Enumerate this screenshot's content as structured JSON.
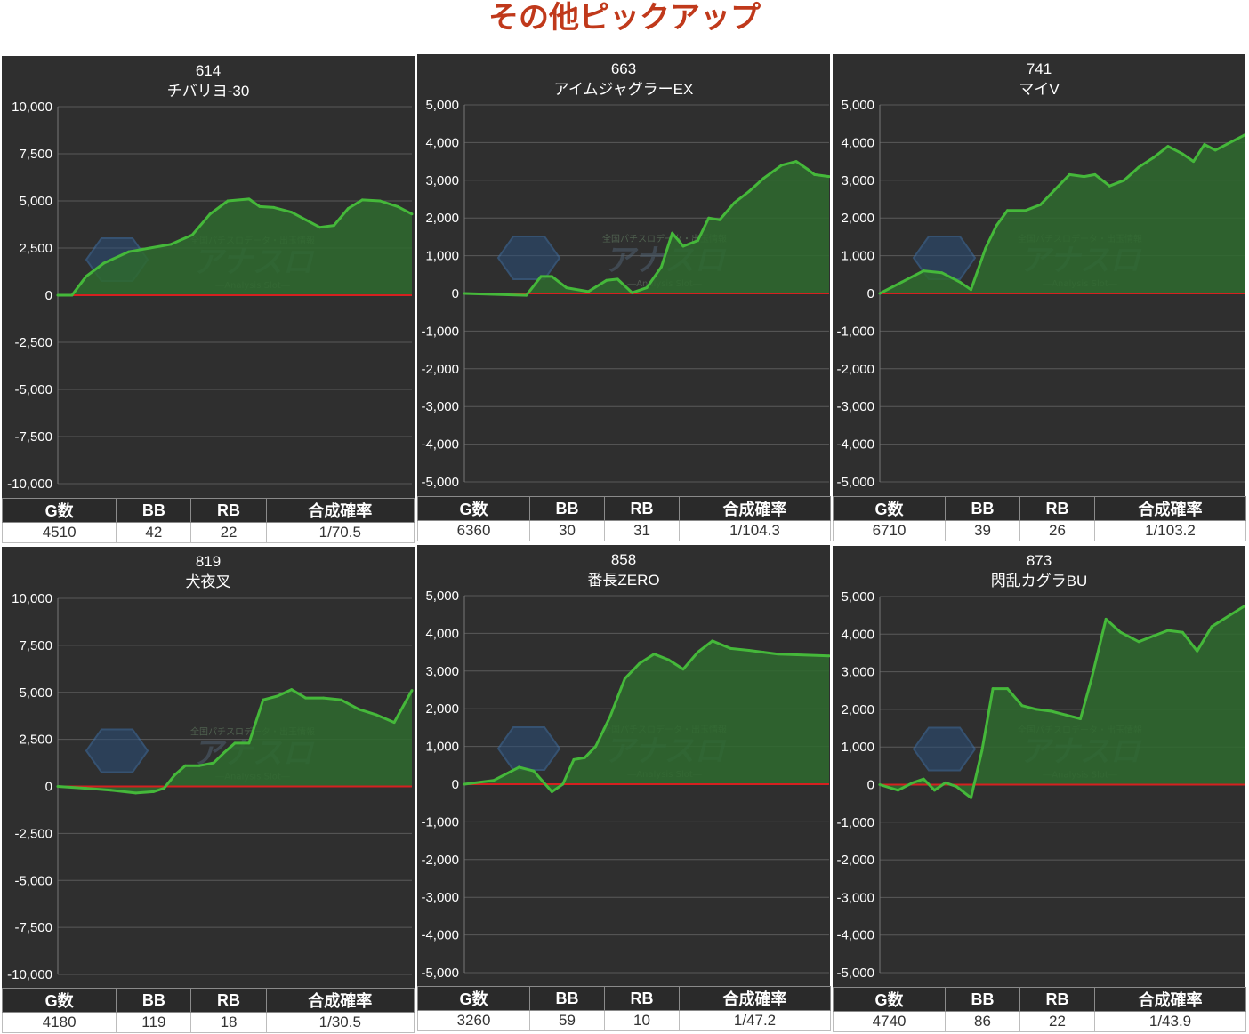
{
  "page": {
    "title": "その他ピックアップ"
  },
  "watermark": {
    "small": "全国パチスロデータ・出玉情報",
    "main": "アナスロ",
    "sub": "―Analysis Slot―"
  },
  "colors": {
    "title": "#c0391b",
    "panel_bg": "#2f2f2f",
    "line": "#45b83a",
    "area": "#2e6a2e",
    "zero_line": "#d62020",
    "grid": "#5a5a5a"
  },
  "headers": {
    "games": "G数",
    "bb": "BB",
    "rb": "RB",
    "rate": "合成確率"
  },
  "charts": [
    {
      "number": "614",
      "name": "チバリヨ-30",
      "stats": {
        "games": "4510",
        "bb": "42",
        "rb": "22",
        "rate": "1/70.5"
      }
    },
    {
      "number": "663",
      "name": "アイムジャグラーEX",
      "stats": {
        "games": "6360",
        "bb": "30",
        "rb": "31",
        "rate": "1/104.3"
      }
    },
    {
      "number": "741",
      "name": "マイV",
      "stats": {
        "games": "6710",
        "bb": "39",
        "rb": "26",
        "rate": "1/103.2"
      }
    },
    {
      "number": "819",
      "name": "犬夜叉",
      "stats": {
        "games": "4180",
        "bb": "119",
        "rb": "18",
        "rate": "1/30.5"
      }
    },
    {
      "number": "858",
      "name": "番長ZERO",
      "stats": {
        "games": "3260",
        "bb": "59",
        "rb": "10",
        "rate": "1/47.2"
      }
    },
    {
      "number": "873",
      "name": "閃乱カグラBU",
      "stats": {
        "games": "4740",
        "bb": "86",
        "rb": "22",
        "rate": "1/43.9"
      }
    }
  ],
  "chart_data": [
    {
      "type": "area",
      "title": "614\nチバリヨ-30",
      "ylim": [
        -10000,
        10000
      ],
      "yticks": [
        "10,000",
        "7,500",
        "5,000",
        "2,500",
        "0",
        "-2,500",
        "-5,000",
        "-7,500",
        "-10,000"
      ],
      "x": [
        0,
        4,
        8,
        13,
        20,
        26,
        32,
        38,
        43,
        48,
        54,
        57,
        61,
        66,
        70,
        74,
        78,
        82,
        86,
        91,
        96,
        100
      ],
      "y": [
        0,
        0,
        1000,
        1700,
        2300,
        2500,
        2700,
        3200,
        4300,
        5000,
        5100,
        4700,
        4650,
        4400,
        4000,
        3600,
        3700,
        4600,
        5050,
        5000,
        4700,
        4300
      ]
    },
    {
      "type": "area",
      "title": "663\nアイムジャグラーEX",
      "ylim": [
        -5000,
        5000
      ],
      "yticks": [
        "5,000",
        "4,000",
        "3,000",
        "2,000",
        "1,000",
        "0",
        "-1,000",
        "-2,000",
        "-3,000",
        "-4,000",
        "-5,000"
      ],
      "x": [
        0,
        17,
        21,
        24,
        28,
        34,
        39,
        42,
        46,
        50,
        54,
        57,
        60,
        64,
        67,
        70,
        74,
        78,
        82,
        87,
        91,
        94,
        96,
        100
      ],
      "y": [
        0,
        -50,
        450,
        450,
        150,
        50,
        350,
        380,
        20,
        150,
        700,
        1600,
        1250,
        1400,
        2000,
        1950,
        2400,
        2700,
        3050,
        3400,
        3500,
        3300,
        3150,
        3100
      ]
    },
    {
      "type": "area",
      "title": "741\nマイV",
      "ylim": [
        -5000,
        5000
      ],
      "yticks": [
        "5,000",
        "4,000",
        "3,000",
        "2,000",
        "1,000",
        "0",
        "-1,000",
        "-2,000",
        "-3,000",
        "-4,000",
        "-5,000"
      ],
      "x": [
        0,
        6,
        12,
        17,
        22,
        25,
        29,
        32,
        35,
        40,
        44,
        48,
        52,
        56,
        59,
        63,
        67,
        71,
        75,
        79,
        83,
        86,
        89,
        92,
        100
      ],
      "y": [
        0,
        300,
        600,
        550,
        300,
        100,
        1200,
        1800,
        2200,
        2200,
        2350,
        2750,
        3150,
        3100,
        3150,
        2850,
        3000,
        3350,
        3600,
        3900,
        3700,
        3500,
        3950,
        3800,
        4200
      ]
    },
    {
      "type": "area",
      "title": "819\n犬夜叉",
      "ylim": [
        -10000,
        10000
      ],
      "yticks": [
        "10,000",
        "7,500",
        "5,000",
        "2,500",
        "0",
        "-2,500",
        "-5,000",
        "-7,500",
        "-10,000"
      ],
      "x": [
        0,
        8,
        15,
        22,
        27,
        30,
        33,
        36,
        40,
        44,
        47,
        50,
        54,
        58,
        62,
        66,
        70,
        75,
        80,
        85,
        90,
        95,
        100
      ],
      "y": [
        0,
        -100,
        -200,
        -350,
        -280,
        -100,
        600,
        1100,
        1100,
        1250,
        1800,
        2300,
        2300,
        4600,
        4800,
        5150,
        4700,
        4700,
        4600,
        4100,
        3800,
        3400,
        5100
      ]
    },
    {
      "type": "area",
      "title": "858\n番長ZERO",
      "ylim": [
        -5000,
        5000
      ],
      "yticks": [
        "5,000",
        "4,000",
        "3,000",
        "2,000",
        "1,000",
        "0",
        "-1,000",
        "-2,000",
        "-3,000",
        "-4,000",
        "-5,000"
      ],
      "x": [
        0,
        8,
        15,
        19,
        24,
        27,
        30,
        33,
        36,
        40,
        44,
        48,
        52,
        56,
        60,
        64,
        68,
        73,
        78,
        82,
        86,
        100
      ],
      "y": [
        0,
        100,
        450,
        350,
        -200,
        0,
        650,
        700,
        1000,
        1800,
        2800,
        3200,
        3450,
        3300,
        3050,
        3500,
        3800,
        3600,
        3550,
        3500,
        3450,
        3400
      ]
    },
    {
      "type": "area",
      "title": "873\n閃乱カグラBU",
      "ylim": [
        -5000,
        5000
      ],
      "yticks": [
        "5,000",
        "4,000",
        "3,000",
        "2,000",
        "1,000",
        "0",
        "-1,000",
        "-2,000",
        "-3,000",
        "-4,000",
        "-5,000"
      ],
      "x": [
        0,
        5,
        9,
        12,
        15,
        18,
        21,
        25,
        28,
        31,
        35,
        39,
        43,
        47,
        51,
        55,
        58,
        62,
        66,
        71,
        75,
        79,
        83,
        87,
        91,
        100
      ],
      "y": [
        0,
        -150,
        50,
        150,
        -150,
        50,
        -50,
        -350,
        900,
        2550,
        2550,
        2100,
        2000,
        1950,
        1850,
        1750,
        2800,
        4400,
        4050,
        3800,
        3950,
        4100,
        4050,
        3550,
        4200,
        4750
      ]
    }
  ]
}
